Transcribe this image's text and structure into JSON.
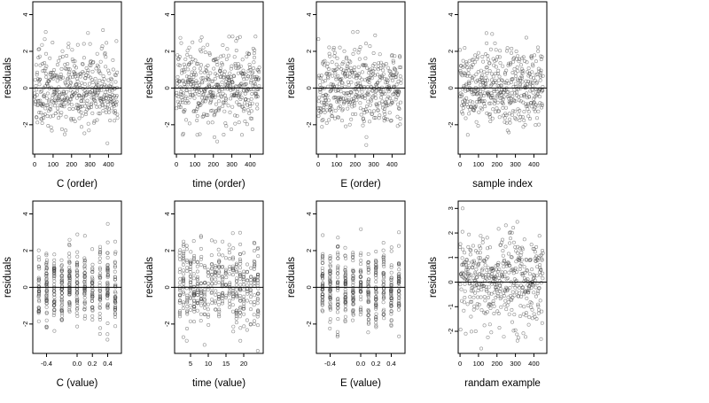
{
  "chart_data": [
    {
      "type": "scatter",
      "xlabel": "C (order)",
      "ylabel": "residuals",
      "xlim": [
        -10,
        470
      ],
      "ylim": [
        -3.6,
        4.7
      ],
      "xticks": [
        0,
        100,
        200,
        300,
        400
      ],
      "xticklabels": [
        "0",
        "100",
        "200",
        "300",
        "400"
      ],
      "yticks": [
        -2,
        0,
        2,
        4
      ],
      "yticklabels": [
        "-2",
        "0",
        "2",
        "4"
      ],
      "hline": 0,
      "gen": {
        "mode": "index",
        "n": 450,
        "seed": 11,
        "clip": [
          -3.5,
          4.6
        ],
        "skew": 0.35
      }
    },
    {
      "type": "scatter",
      "xlabel": "time (order)",
      "ylabel": "residuals",
      "xlim": [
        -10,
        470
      ],
      "ylim": [
        -3.6,
        4.7
      ],
      "xticks": [
        0,
        100,
        200,
        300,
        400
      ],
      "xticklabels": [
        "0",
        "100",
        "200",
        "300",
        "400"
      ],
      "yticks": [
        -2,
        0,
        2,
        4
      ],
      "yticklabels": [
        "-2",
        "0",
        "2",
        "4"
      ],
      "hline": 0,
      "gen": {
        "mode": "index",
        "n": 450,
        "seed": 23,
        "clip": [
          -3.5,
          4.6
        ],
        "skew": 0.35
      }
    },
    {
      "type": "scatter",
      "xlabel": "E (order)",
      "ylabel": "residuals",
      "xlim": [
        -10,
        470
      ],
      "ylim": [
        -3.6,
        4.7
      ],
      "xticks": [
        0,
        100,
        200,
        300,
        400
      ],
      "xticklabels": [
        "0",
        "100",
        "200",
        "300",
        "400"
      ],
      "yticks": [
        -2,
        0,
        2,
        4
      ],
      "yticklabels": [
        "-2",
        "0",
        "2",
        "4"
      ],
      "hline": 0,
      "gen": {
        "mode": "index",
        "n": 450,
        "seed": 37,
        "clip": [
          -3.5,
          4.6
        ],
        "skew": 0.35
      }
    },
    {
      "type": "scatter",
      "xlabel": "sample index",
      "ylabel": "residuals",
      "xlim": [
        -10,
        470
      ],
      "ylim": [
        -3.6,
        4.7
      ],
      "xticks": [
        0,
        100,
        200,
        300,
        400
      ],
      "xticklabels": [
        "0",
        "100",
        "200",
        "300",
        "400"
      ],
      "yticks": [
        -2,
        0,
        2,
        4
      ],
      "yticklabels": [
        "-2",
        "0",
        "2",
        "4"
      ],
      "hline": 0,
      "gen": {
        "mode": "index",
        "n": 450,
        "seed": 41,
        "clip": [
          -3.5,
          4.6
        ],
        "skew": 0.35
      }
    },
    {
      "type": "scatter",
      "xlabel": "C (value)",
      "ylabel": "residuals",
      "xlim": [
        -0.58,
        0.58
      ],
      "ylim": [
        -3.6,
        4.7
      ],
      "xticks": [
        -0.4,
        0,
        0.2,
        0.4
      ],
      "xticklabels": [
        "-0.4",
        "0.0",
        "0.2",
        "0.4"
      ],
      "yticks": [
        -2,
        0,
        2,
        4
      ],
      "yticklabels": [
        "-2",
        "0",
        "2",
        "4"
      ],
      "hline": 0,
      "gen": {
        "mode": "levels",
        "levels": [
          -0.5,
          -0.4,
          -0.3,
          -0.2,
          -0.1,
          0.0,
          0.1,
          0.2,
          0.3,
          0.4,
          0.5
        ],
        "n": 450,
        "seed": 53,
        "jitter": 0.004,
        "clip": [
          -3.5,
          4.6
        ],
        "skew": 0.35
      }
    },
    {
      "type": "scatter",
      "xlabel": "time (value)",
      "ylabel": "residuals",
      "xlim": [
        0.5,
        25.5
      ],
      "ylim": [
        -3.6,
        4.7
      ],
      "xticks": [
        5,
        10,
        15,
        20
      ],
      "xticklabels": [
        "5",
        "10",
        "15",
        "20"
      ],
      "yticks": [
        -2,
        0,
        2,
        4
      ],
      "yticklabels": [
        "-2",
        "0",
        "2",
        "4"
      ],
      "hline": 0,
      "gen": {
        "mode": "levels",
        "levels": [
          2,
          3,
          4,
          5,
          6,
          7,
          8,
          9,
          10,
          11,
          12,
          13,
          14,
          15,
          16,
          17,
          18,
          19,
          20,
          21,
          22,
          23,
          24
        ],
        "n": 450,
        "seed": 67,
        "jitter": 0.08,
        "clip": [
          -3.5,
          4.6
        ],
        "skew": 0.35
      }
    },
    {
      "type": "scatter",
      "xlabel": "E (value)",
      "ylabel": "residuals",
      "xlim": [
        -0.58,
        0.58
      ],
      "ylim": [
        -3.6,
        4.7
      ],
      "xticks": [
        -0.4,
        0,
        0.2,
        0.4
      ],
      "xticklabels": [
        "-0.4",
        "0.0",
        "0.2",
        "0.4"
      ],
      "yticks": [
        -2,
        0,
        2,
        4
      ],
      "yticklabels": [
        "-2",
        "0",
        "2",
        "4"
      ],
      "hline": 0,
      "gen": {
        "mode": "levels",
        "levels": [
          -0.5,
          -0.4,
          -0.3,
          -0.2,
          -0.1,
          0.0,
          0.1,
          0.2,
          0.3,
          0.4,
          0.5
        ],
        "n": 450,
        "seed": 79,
        "jitter": 0.004,
        "clip": [
          -3.5,
          4.6
        ],
        "skew": 0.35
      }
    },
    {
      "type": "scatter",
      "xlabel": "randam example",
      "ylabel": "residuals",
      "xlim": [
        -10,
        470
      ],
      "ylim": [
        -2.9,
        3.3
      ],
      "xticks": [
        0,
        100,
        200,
        300,
        400
      ],
      "xticklabels": [
        "0",
        "100",
        "200",
        "300",
        "400"
      ],
      "yticks": [
        -2,
        -1,
        0,
        1,
        2,
        3
      ],
      "yticklabels": [
        "-2",
        "-1",
        "0",
        "1",
        "2",
        "3"
      ],
      "hline": 0,
      "gen": {
        "mode": "index",
        "n": 450,
        "seed": 97,
        "clip": [
          -2.7,
          3.0
        ],
        "skew": 0
      }
    }
  ]
}
